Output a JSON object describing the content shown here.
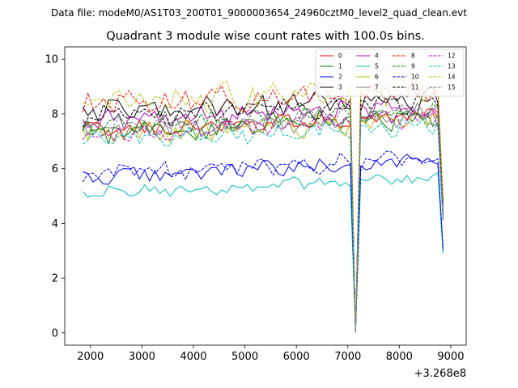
{
  "figure": {
    "suptitle": "Data file: modeM0/AS1T03_200T01_9000003654_24960cztM0_level2_quad_clean.evt",
    "x_offset_label": "+3.268e8"
  },
  "chart_data": {
    "type": "line",
    "title": "Quadrant 3 module wise count rates with 100.0s bins.",
    "xlabel": "",
    "ylabel": "",
    "xlim": [
      1500,
      9300
    ],
    "ylim": [
      -0.45,
      10.45
    ],
    "x_ticks": [
      2000,
      3000,
      4000,
      5000,
      6000,
      7000,
      8000,
      9000
    ],
    "x_tick_labels": [
      "2000",
      "3000",
      "4000",
      "5000",
      "6000",
      "7000",
      "8000",
      "9000"
    ],
    "y_ticks": [
      0,
      2,
      4,
      6,
      8,
      10
    ],
    "y_tick_labels": [
      "0",
      "2",
      "4",
      "6",
      "8",
      "10"
    ],
    "x_offset": 326800000,
    "x_start": 1850,
    "x_step": 100,
    "n_points": 71,
    "legend_position": "upper-right",
    "dip_centers": [
      7150
    ],
    "series": [
      {
        "name": "0",
        "color": "#ff0000",
        "dash": "solid",
        "level": 7.4,
        "noise": 0.28,
        "peak": 8.8,
        "end": 4.1
      },
      {
        "name": "1",
        "color": "#008000",
        "dash": "solid",
        "level": 7.3,
        "noise": 0.35,
        "peak": 8.9,
        "end": 4.2
      },
      {
        "name": "2",
        "color": "#0000ff",
        "dash": "solid",
        "level": 5.7,
        "noise": 0.25,
        "peak": 6.8,
        "end": 3.1
      },
      {
        "name": "3",
        "color": "#000000",
        "dash": "solid",
        "level": 8.0,
        "noise": 0.45,
        "peak": 9.9,
        "end": 4.8
      },
      {
        "name": "4",
        "color": "#bf00bf",
        "dash": "solid",
        "level": 7.7,
        "noise": 0.35,
        "peak": 9.4,
        "end": 4.6
      },
      {
        "name": "5",
        "color": "#00bfbf",
        "dash": "solid",
        "level": 5.1,
        "noise": 0.22,
        "peak": 6.3,
        "end": 2.9
      },
      {
        "name": "6",
        "color": "#bfbf00",
        "dash": "solid",
        "level": 7.2,
        "noise": 0.35,
        "peak": 9.0,
        "end": 4.3
      },
      {
        "name": "7",
        "color": "#808080",
        "dash": "solid",
        "level": 7.4,
        "noise": 0.35,
        "peak": 9.8,
        "end": 4.4
      },
      {
        "name": "8",
        "color": "#ff0000",
        "dash": "dashed",
        "level": 8.3,
        "noise": 0.4,
        "peak": 9.5,
        "end": 4.9
      },
      {
        "name": "9",
        "color": "#008000",
        "dash": "dashed",
        "level": 7.6,
        "noise": 0.3,
        "peak": 9.0,
        "end": 4.4
      },
      {
        "name": "10",
        "color": "#0000ff",
        "dash": "dashed",
        "level": 5.8,
        "noise": 0.28,
        "peak": 6.6,
        "end": 3.0
      },
      {
        "name": "11",
        "color": "#000000",
        "dash": "dashed",
        "level": 7.9,
        "noise": 0.35,
        "peak": 9.3,
        "end": 4.7
      },
      {
        "name": "12",
        "color": "#bf00bf",
        "dash": "dashed",
        "level": 7.3,
        "noise": 0.3,
        "peak": 8.9,
        "end": 4.3
      },
      {
        "name": "13",
        "color": "#00bfbf",
        "dash": "dashed",
        "level": 7.0,
        "noise": 0.3,
        "peak": 8.7,
        "end": 4.1
      },
      {
        "name": "14",
        "color": "#bfbf00",
        "dash": "dashed",
        "level": 8.4,
        "noise": 0.45,
        "peak": 9.9,
        "end": 4.9
      },
      {
        "name": "15",
        "color": "#808080",
        "dash": "dashed",
        "level": 7.5,
        "noise": 0.3,
        "peak": 9.1,
        "end": 4.4
      }
    ]
  }
}
